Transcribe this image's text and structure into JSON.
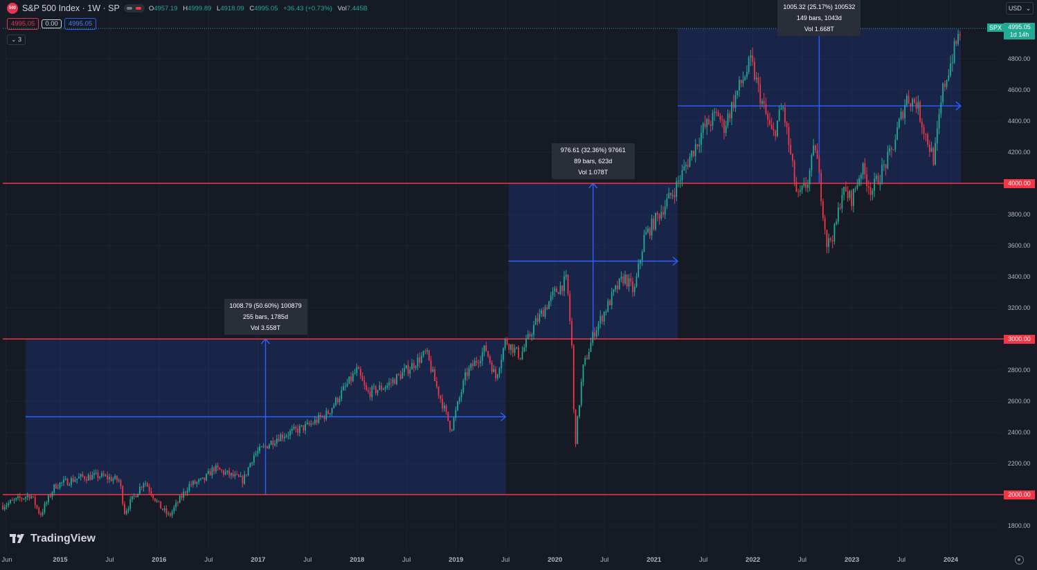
{
  "header": {
    "badge_text": "500",
    "symbol_title": "S&P 500 Index · 1W · SP",
    "open_label": "O",
    "open": "4957.19",
    "high_label": "H",
    "high": "4999.89",
    "low_label": "L",
    "low": "4918.09",
    "close_label": "C",
    "close": "4995.05",
    "change": "+36.43 (+0.73%)",
    "vol_label": "Vol",
    "vol": "7.445B"
  },
  "price_boxes": {
    "sell": "4995.05",
    "spread": "0.00",
    "buy": "4995.05"
  },
  "collapse_label": "⌄ 3",
  "currency": {
    "label": "USD",
    "chevron": "⌄"
  },
  "colors": {
    "background": "#161a25",
    "up": "#22ab94",
    "down": "#f23645",
    "level": "#f23645",
    "measure": "#2962ff",
    "grid": "#1e222d"
  },
  "symbol_tag": "SPX",
  "last_price": {
    "value": "4995.05",
    "countdown": "1d 14h"
  },
  "branding": "TradingView",
  "icons": [
    "symbol-badge-icon",
    "flag-icon",
    "chevron-down-icon",
    "tradingview-logo-icon",
    "settings-gear-icon"
  ],
  "chart_data": {
    "type": "candlestick",
    "interval": "1W",
    "title": "S&P 500 Index · 1W · SP",
    "ylim": [
      1800,
      5000
    ],
    "y_ticks": [
      "1800.00",
      "2200.00",
      "2400.00",
      "2600.00",
      "2800.00",
      "3200.00",
      "3400.00",
      "3600.00",
      "3800.00",
      "4200.00",
      "4400.00",
      "4600.00",
      "4800.00"
    ],
    "level_labels": [
      "2000.00",
      "3000.00",
      "4000.00"
    ],
    "levels": [
      2000,
      3000,
      4000
    ],
    "x_ticks": [
      {
        "label": "Jun",
        "t": 2014.45
      },
      {
        "label": "2015",
        "t": 2015.0
      },
      {
        "label": "Jul",
        "t": 2015.5
      },
      {
        "label": "2016",
        "t": 2016.0
      },
      {
        "label": "Jul",
        "t": 2016.5
      },
      {
        "label": "2017",
        "t": 2017.0
      },
      {
        "label": "Jul",
        "t": 2017.5
      },
      {
        "label": "2018",
        "t": 2018.0
      },
      {
        "label": "Jul",
        "t": 2018.5
      },
      {
        "label": "2019",
        "t": 2019.0
      },
      {
        "label": "Jul",
        "t": 2019.5
      },
      {
        "label": "2020",
        "t": 2020.0
      },
      {
        "label": "Jul",
        "t": 2020.5
      },
      {
        "label": "2021",
        "t": 2021.0
      },
      {
        "label": "Jul",
        "t": 2021.5
      },
      {
        "label": "2022",
        "t": 2022.0
      },
      {
        "label": "Jul",
        "t": 2022.5
      },
      {
        "label": "2023",
        "t": 2023.0
      },
      {
        "label": "Jul",
        "t": 2023.5
      },
      {
        "label": "2024",
        "t": 2024.0
      }
    ],
    "xlim": [
      2014.42,
      2024.5
    ],
    "anchors": [
      [
        2014.42,
        1930
      ],
      [
        2014.7,
        2000
      ],
      [
        2014.8,
        1870
      ],
      [
        2014.95,
        2060
      ],
      [
        2015.2,
        2110
      ],
      [
        2015.4,
        2120
      ],
      [
        2015.6,
        2090
      ],
      [
        2015.65,
        1890
      ],
      [
        2015.85,
        2090
      ],
      [
        2016.0,
        1930
      ],
      [
        2016.1,
        1860
      ],
      [
        2016.3,
        2060
      ],
      [
        2016.45,
        2090
      ],
      [
        2016.55,
        2170
      ],
      [
        2016.85,
        2090
      ],
      [
        2016.95,
        2250
      ],
      [
        2017.2,
        2370
      ],
      [
        2017.5,
        2440
      ],
      [
        2017.7,
        2520
      ],
      [
        2018.0,
        2800
      ],
      [
        2018.1,
        2650
      ],
      [
        2018.3,
        2700
      ],
      [
        2018.5,
        2800
      ],
      [
        2018.7,
        2910
      ],
      [
        2018.8,
        2700
      ],
      [
        2018.95,
        2420
      ],
      [
        2019.1,
        2770
      ],
      [
        2019.3,
        2940
      ],
      [
        2019.4,
        2750
      ],
      [
        2019.5,
        2990
      ],
      [
        2019.65,
        2890
      ],
      [
        2019.8,
        3100
      ],
      [
        2020.0,
        3300
      ],
      [
        2020.12,
        3380
      ],
      [
        2020.17,
        2950
      ],
      [
        2020.2,
        2300
      ],
      [
        2020.28,
        2800
      ],
      [
        2020.4,
        3050
      ],
      [
        2020.6,
        3300
      ],
      [
        2020.7,
        3400
      ],
      [
        2020.8,
        3300
      ],
      [
        2020.9,
        3650
      ],
      [
        2021.0,
        3750
      ],
      [
        2021.2,
        3950
      ],
      [
        2021.5,
        4350
      ],
      [
        2021.65,
        4450
      ],
      [
        2021.7,
        4350
      ],
      [
        2021.85,
        4600
      ],
      [
        2021.98,
        4780
      ],
      [
        2022.1,
        4500
      ],
      [
        2022.2,
        4300
      ],
      [
        2022.3,
        4500
      ],
      [
        2022.45,
        3900
      ],
      [
        2022.55,
        4000
      ],
      [
        2022.63,
        4250
      ],
      [
        2022.75,
        3600
      ],
      [
        2022.83,
        3700
      ],
      [
        2022.9,
        3950
      ],
      [
        2023.0,
        3900
      ],
      [
        2023.1,
        4100
      ],
      [
        2023.2,
        3950
      ],
      [
        2023.4,
        4200
      ],
      [
        2023.55,
        4550
      ],
      [
        2023.65,
        4520
      ],
      [
        2023.75,
        4300
      ],
      [
        2023.83,
        4150
      ],
      [
        2023.92,
        4600
      ],
      [
        2024.0,
        4780
      ],
      [
        2024.1,
        4995
      ]
    ],
    "last_value": 4995.05,
    "measures": [
      {
        "x0": 2014.65,
        "x1": 2019.5,
        "y0": 2000,
        "y1": 3000,
        "text": [
          "1008.79 (50.60%) 100879",
          "255 bars, 1785d",
          "Vol 3.558T"
        ]
      },
      {
        "x0": 2019.53,
        "x1": 2021.24,
        "y0": 3000,
        "y1": 4000,
        "text": [
          "976.61 (32.36%) 97661",
          "89 bars, 623d",
          "Vol 1.078T"
        ]
      },
      {
        "x0": 2021.24,
        "x1": 2024.1,
        "y0": 4000,
        "y1": 4995,
        "text": [
          "1005.32 (25.17%) 100532",
          "149 bars, 1043d",
          "Vol 1.668T"
        ]
      }
    ]
  }
}
